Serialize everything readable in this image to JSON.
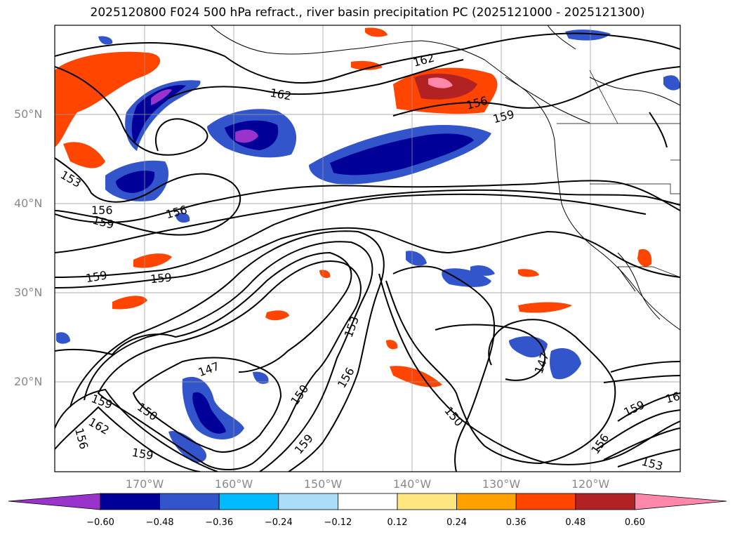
{
  "title": "2025120800 F024 500 hPa refract., river basin precipitation PC (2025121000 - 2025121300)",
  "lat_labels": [
    "50°N",
    "40°N",
    "30°N",
    "20°N"
  ],
  "lon_labels": [
    "170°W",
    "160°W",
    "150°W",
    "140°W",
    "130°W",
    "120°W"
  ],
  "colorbar": {
    "ticks": [
      "−0.60",
      "−0.48",
      "−0.36",
      "−0.24",
      "−0.12",
      "0.12",
      "0.24",
      "0.36",
      "0.48",
      "0.60"
    ],
    "colors": [
      "#9933cc",
      "#000099",
      "#3355cc",
      "#00bbff",
      "#aaddf8",
      "#ffffff",
      "#ffe680",
      "#ffa200",
      "#ff4500",
      "#b22222",
      "#ff88aa",
      "#ff88aa"
    ]
  },
  "contour_labels": [
    "162",
    "162",
    "156",
    "159",
    "153",
    "156",
    "159",
    "156",
    "159",
    "159",
    "147",
    "150",
    "153",
    "156",
    "150",
    "159",
    "162",
    "159",
    "156",
    "150",
    "147",
    "159",
    "156",
    "153",
    "16",
    "159"
  ],
  "colors": {
    "contour": "#000000",
    "grid": "#999999",
    "axis_text": "#8a8a8a"
  }
}
